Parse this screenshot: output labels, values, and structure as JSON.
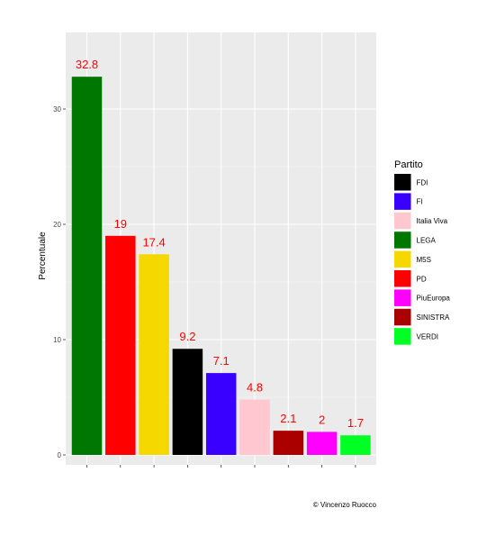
{
  "chart_data": {
    "type": "bar",
    "title": "",
    "xlabel": "",
    "ylabel": "Percentuale",
    "ylim": [
      0,
      34
    ],
    "yticks": [
      0,
      10,
      20,
      30
    ],
    "grid": true,
    "legend_title": "Partito",
    "legend_position": "right",
    "caption": "© Vincenzo Ruocco",
    "bars": [
      {
        "party": "LEGA",
        "value": 32.8,
        "label": "32.8",
        "color": "#007700"
      },
      {
        "party": "PD",
        "value": 19,
        "label": "19",
        "color": "#ff0000"
      },
      {
        "party": "M5S",
        "value": 17.4,
        "label": "17.4",
        "color": "#f5d800"
      },
      {
        "party": "FDI",
        "value": 9.2,
        "label": "9.2",
        "color": "#000000"
      },
      {
        "party": "FI",
        "value": 7.1,
        "label": "7.1",
        "color": "#3a00ff"
      },
      {
        "party": "Italia Viva",
        "value": 4.8,
        "label": "4.8",
        "color": "#ffc8d0"
      },
      {
        "party": "SINISTRA",
        "value": 2.1,
        "label": "2.1",
        "color": "#aa0000"
      },
      {
        "party": "PiuEuropa",
        "value": 2,
        "label": "2",
        "color": "#ff00ff"
      },
      {
        "party": "VERDI",
        "value": 1.7,
        "label": "1.7",
        "color": "#00ff22"
      }
    ],
    "legend": [
      {
        "label": "FDI",
        "color": "#000000"
      },
      {
        "label": "FI",
        "color": "#3a00ff"
      },
      {
        "label": "Italia Viva",
        "color": "#ffc8d0"
      },
      {
        "label": "LEGA",
        "color": "#007700"
      },
      {
        "label": "M5S",
        "color": "#f5d800"
      },
      {
        "label": "PD",
        "color": "#ff0000"
      },
      {
        "label": "PiuEuropa",
        "color": "#ff00ff"
      },
      {
        "label": "SINISTRA",
        "color": "#aa0000"
      },
      {
        "label": "VERDI",
        "color": "#00ff22"
      }
    ]
  }
}
